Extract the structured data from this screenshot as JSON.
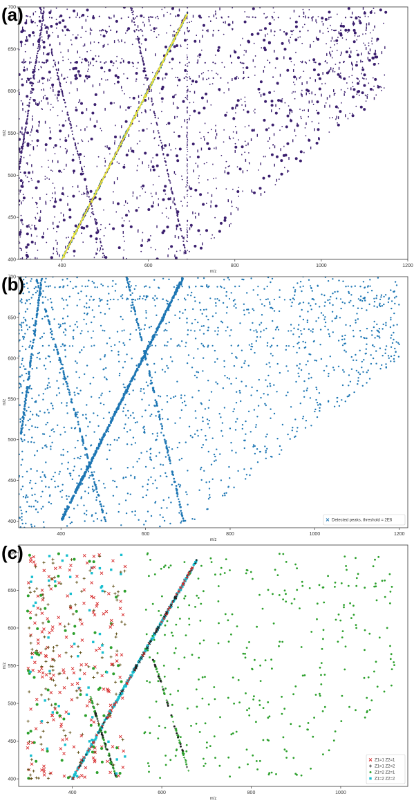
{
  "chart_data": [
    {
      "panel_label": "(a)",
      "type": "scatter",
      "style": "density",
      "xlabel": "m/z",
      "ylabel": "m/z",
      "xlim": [
        300,
        1200
      ],
      "ylim": [
        400,
        700
      ],
      "xticks": [
        400,
        600,
        800,
        1000,
        1200
      ],
      "yticks": [
        400,
        450,
        500,
        550,
        600,
        650,
        700
      ],
      "colors": {
        "points": "#3b1f6e",
        "hot": "#e8e23a",
        "mid": "#2a7b8a"
      },
      "features": {
        "diagonal": {
          "x": [
            400,
            690
          ],
          "y": [
            400,
            692
          ]
        },
        "curves": [
          {
            "x": [
              350,
              420,
              500
            ],
            "y": [
              700,
              560,
              400
            ]
          },
          {
            "x": [
              560,
              620,
              690
            ],
            "y": [
              700,
              560,
              400
            ]
          },
          {
            "x": [
              300,
              330,
              360
            ],
            "y": [
              505,
              600,
              700
            ]
          }
        ],
        "vertical_line": 690,
        "noise_extent": {
          "x": [
            300,
            1150
          ],
          "y_top": 700,
          "y_floor_at_xmax": 600
        }
      }
    },
    {
      "panel_label": "(b)",
      "type": "scatter",
      "style": "points",
      "xlabel": "m/z",
      "ylabel": "m/z",
      "xlim": [
        300,
        1220
      ],
      "ylim": [
        392,
        700
      ],
      "xticks": [
        400,
        600,
        800,
        1000,
        1200
      ],
      "yticks": [
        400,
        450,
        500,
        550,
        600,
        650,
        700
      ],
      "colors": {
        "points": "#1f77b4"
      },
      "legend": [
        {
          "label": "Detected peaks, threshold = 2E6",
          "marker": "x",
          "color": "#1f77b4"
        }
      ],
      "legend_position": "lower-right",
      "features": {
        "diagonal": {
          "x": [
            400,
            690
          ],
          "y": [
            400,
            700
          ]
        },
        "curves": [
          {
            "x": [
              340,
              420,
              505
            ],
            "y": [
              700,
              560,
              400
            ]
          },
          {
            "x": [
              555,
              620,
              690
            ],
            "y": [
              700,
              560,
              400
            ]
          },
          {
            "x": [
              305,
              330,
              355
            ],
            "y": [
              505,
              600,
              700
            ]
          }
        ],
        "noise_extent": {
          "x": [
            300,
            1200
          ],
          "y_top": 700,
          "y_floor_at_xmax": 600
        }
      }
    },
    {
      "panel_label": "(c)",
      "type": "scatter",
      "style": "charge-states",
      "xlabel": "m/z",
      "ylabel": "m/z",
      "xlim": [
        280,
        1150
      ],
      "ylim": [
        390,
        710
      ],
      "xticks": [
        400,
        600,
        800,
        1000
      ],
      "yticks": [
        400,
        450,
        500,
        550,
        600,
        650,
        700
      ],
      "legend": [
        {
          "label": "Z1=1 Z2=1",
          "marker": "x",
          "color": "#d62728"
        },
        {
          "label": "Z1=1 Z2=2",
          "marker": "+",
          "color": "#1f1f1f"
        },
        {
          "label": "Z1=2 Z2=1",
          "marker": "dot",
          "color": "#2ca02c"
        },
        {
          "label": "Z1=2 Z2=2",
          "marker": "square",
          "color": "#17becf"
        }
      ],
      "legend_position": "lower-right",
      "features": {
        "diagonal": {
          "x": [
            400,
            680
          ],
          "y": [
            400,
            692
          ]
        },
        "curves": [
          {
            "x": [
              440,
              470,
              500
            ],
            "y": [
              510,
              450,
              400
            ]
          },
          {
            "x": [
              580,
              625,
              660
            ],
            "y": [
              560,
              480,
              410
            ]
          }
        ],
        "cluster_left": {
          "x": [
            300,
            520
          ],
          "y": [
            400,
            700
          ]
        },
        "green_scatter": {
          "x": [
            560,
            1120
          ],
          "y": [
            400,
            700
          ]
        }
      }
    }
  ]
}
